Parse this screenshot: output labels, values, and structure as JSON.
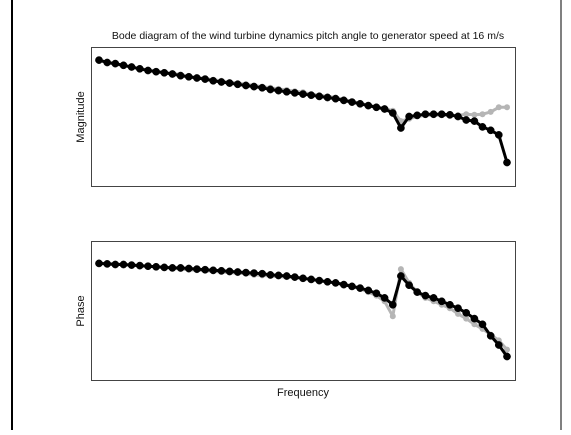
{
  "figure": {
    "title": "Bode diagram of the wind turbine dynamics pitch angle to generator speed at 16 m/s"
  },
  "colors": {
    "series_black": "#000000",
    "series_gray": "#b5b5b5",
    "axes": "#333333"
  },
  "chart_data": [
    {
      "type": "line",
      "panel": "magnitude",
      "title": "Bode diagram of the wind turbine dynamics pitch angle to generator speed at 16 m/s",
      "xlabel": "",
      "ylabel": "Magnitude",
      "xlim": [
        0,
        100
      ],
      "ylim": [
        0,
        100
      ],
      "x_ticks": "none",
      "y_ticks": "none",
      "grid": false,
      "legend": "none",
      "x": [
        0,
        2,
        4,
        6,
        8,
        10,
        12,
        14,
        16,
        18,
        20,
        22,
        24,
        26,
        28,
        30,
        32,
        34,
        36,
        38,
        40,
        42,
        44,
        46,
        48,
        50,
        52,
        54,
        56,
        58,
        60,
        62,
        64,
        66,
        68,
        70,
        72,
        74,
        76,
        78,
        80,
        82,
        84,
        86,
        88,
        90,
        92,
        94,
        96,
        98,
        100
      ],
      "series": [
        {
          "values": [
            99,
            97,
            96,
            94.5,
            93,
            91.5,
            90,
            89,
            88,
            87,
            85.5,
            84.5,
            83.5,
            82.5,
            81,
            80,
            79,
            78,
            77,
            76,
            75,
            73.5,
            72.5,
            71.5,
            70.5,
            69.5,
            68.5,
            67.5,
            66.5,
            65.5,
            64,
            62.5,
            61,
            59.5,
            58,
            56.5,
            53,
            40,
            50,
            51,
            52,
            52,
            52,
            51.5,
            50,
            47,
            46,
            41,
            38,
            34,
            10
          ],
          "color_key": "series_black"
        },
        {
          "values": [
            99,
            97,
            95.5,
            94,
            93,
            91.5,
            90.5,
            89.5,
            88.5,
            87.5,
            86.5,
            85,
            84,
            83,
            82,
            81,
            80,
            79,
            78,
            77,
            76,
            75,
            74,
            73,
            72,
            71,
            69.5,
            68.5,
            67.5,
            66.5,
            65,
            63,
            61.5,
            60,
            58.5,
            57,
            55,
            46,
            48,
            50,
            51,
            51,
            51,
            50.5,
            51,
            52,
            51.5,
            52,
            54,
            58,
            58
          ],
          "color_key": "series_gray"
        }
      ]
    },
    {
      "type": "line",
      "panel": "phase",
      "title": "",
      "xlabel": "Frequency",
      "ylabel": "Phase",
      "xlim": [
        0,
        100
      ],
      "ylim": [
        0,
        100
      ],
      "x_ticks": "none",
      "y_ticks": "none",
      "grid": false,
      "legend": "none",
      "x": [
        0,
        2,
        4,
        6,
        8,
        10,
        12,
        14,
        16,
        18,
        20,
        22,
        24,
        26,
        28,
        30,
        32,
        34,
        36,
        38,
        40,
        42,
        44,
        46,
        48,
        50,
        52,
        54,
        56,
        58,
        60,
        62,
        64,
        66,
        68,
        70,
        72,
        74,
        76,
        78,
        80,
        82,
        84,
        86,
        88,
        90,
        92,
        94,
        96,
        98,
        100
      ],
      "series": [
        {
          "values": [
            91,
            90.5,
            90,
            90,
            89.5,
            89,
            88.5,
            88,
            87.5,
            87,
            87,
            86.5,
            86,
            85.5,
            85,
            84.5,
            84,
            83.5,
            83,
            82.5,
            82,
            81,
            80.5,
            80,
            79,
            78,
            77,
            76,
            75,
            74,
            72.5,
            71,
            69.5,
            67.5,
            65,
            61,
            55,
            80,
            72,
            66,
            63,
            61,
            58,
            55,
            52,
            48,
            43,
            38,
            28,
            20,
            10
          ],
          "color_key": "series_black"
        },
        {
          "values": [
            91,
            91,
            90.5,
            90,
            89.5,
            89,
            88.5,
            88,
            87.5,
            87,
            86,
            85.5,
            85,
            84.5,
            84,
            83.5,
            83,
            82.5,
            82,
            81,
            80.5,
            80,
            79.5,
            79,
            78.5,
            78,
            77,
            76,
            75,
            74,
            73,
            71.5,
            69,
            66,
            63,
            58,
            45,
            86,
            74,
            66,
            61,
            58,
            55,
            52,
            47,
            43,
            38,
            34,
            29,
            24,
            16
          ],
          "color_key": "series_gray"
        }
      ]
    }
  ]
}
